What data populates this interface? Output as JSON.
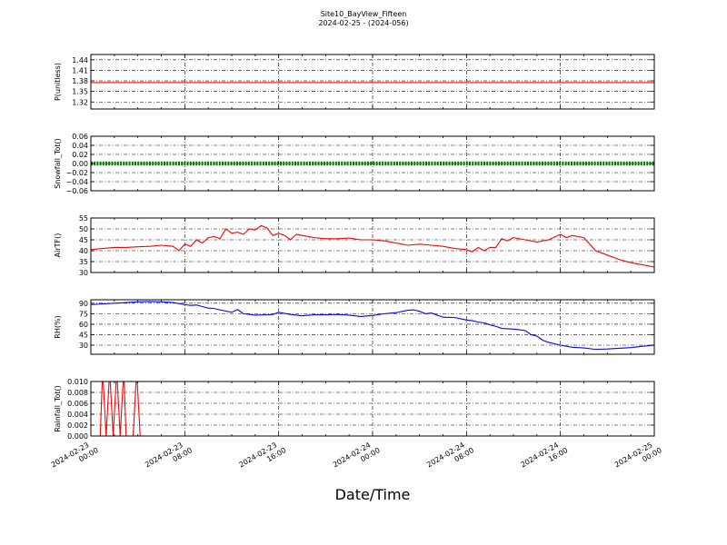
{
  "figure": {
    "title": "Site10_BayView_Fifteen",
    "subtitle": "2024-02-25 - (2024-056)",
    "xlabel": "Date/Time",
    "x_tick_labels": [
      [
        "2024-02-23",
        "00:00"
      ],
      [
        "2024-02-23",
        "08:00"
      ],
      [
        "2024-02-23",
        "16:00"
      ],
      [
        "2024-02-24",
        "00:00"
      ],
      [
        "2024-02-24",
        "08:00"
      ],
      [
        "2024-02-24",
        "16:00"
      ],
      [
        "2024-02-25",
        "00:00"
      ]
    ]
  },
  "chart_data": [
    {
      "type": "line",
      "ylabel": "P(unitless)",
      "color": "#ff0000",
      "xlim": [
        0,
        48
      ],
      "ylim": [
        1.3,
        1.455
      ],
      "yticks": [
        "1.44",
        "1.41",
        "1.38",
        "1.35",
        "1.32"
      ],
      "ytick_values": [
        1.44,
        1.41,
        1.38,
        1.35,
        1.32
      ],
      "grid": true,
      "series": [
        {
          "x": [
            0,
            48
          ],
          "values": [
            1.375,
            1.375
          ]
        }
      ]
    },
    {
      "type": "line",
      "ylabel": "Snowfall_Tot()",
      "color": "#008000",
      "markers": true,
      "xlim": [
        0,
        48
      ],
      "ylim": [
        -0.06,
        0.06
      ],
      "yticks": [
        "0.06",
        "0.04",
        "0.02",
        "0.00",
        "−0.02",
        "−0.04",
        "−0.06"
      ],
      "ytick_values": [
        0.06,
        0.04,
        0.02,
        0.0,
        -0.02,
        -0.04,
        -0.06
      ],
      "grid": true,
      "series": [
        {
          "x": [
            0,
            48
          ],
          "values": [
            0,
            0
          ]
        }
      ]
    },
    {
      "type": "line",
      "ylabel": "AirTF()",
      "color": "#ff0000",
      "xlim": [
        0,
        48
      ],
      "ylim": [
        30,
        55
      ],
      "yticks": [
        "55",
        "50",
        "45",
        "40",
        "35",
        "30"
      ],
      "ytick_values": [
        55,
        50,
        45,
        40,
        35,
        30
      ],
      "grid": true,
      "series": [
        {
          "x": [
            0,
            1,
            2,
            3,
            4,
            5,
            6,
            7,
            7.5,
            8,
            8.5,
            9,
            9.5,
            10,
            10.5,
            11,
            11.5,
            12,
            12.5,
            13,
            13.5,
            14,
            14.5,
            15,
            15.5,
            16,
            16.5,
            17,
            17.5,
            18,
            19,
            20,
            21,
            22,
            23,
            24,
            25,
            26,
            27,
            28,
            29,
            30,
            31,
            32,
            32.5,
            33,
            33.5,
            34,
            34.5,
            35,
            35.5,
            36,
            37,
            38,
            39,
            40,
            40.5,
            41,
            42,
            43,
            44,
            45,
            46,
            47,
            48
          ],
          "values": [
            40.5,
            41,
            41.5,
            41.5,
            41.8,
            42,
            42.5,
            42,
            40,
            43,
            42,
            45,
            43.5,
            46,
            46.5,
            45.5,
            50,
            48,
            48.5,
            47.5,
            50,
            49.5,
            51.5,
            50.5,
            47,
            48,
            47,
            45,
            47.5,
            47,
            46,
            45.5,
            45.5,
            45.8,
            45,
            45,
            44.5,
            43.5,
            42.5,
            43,
            42.5,
            42,
            41,
            40.5,
            39.5,
            41.5,
            40,
            41.5,
            41.5,
            45.5,
            44.5,
            46,
            45,
            44,
            45,
            47.5,
            46,
            47,
            46,
            40,
            38,
            36,
            34.5,
            33.5,
            32.5
          ]
        }
      ]
    },
    {
      "type": "line",
      "ylabel": "RH(%)",
      "color": "#0000ff",
      "xlim": [
        0,
        48
      ],
      "ylim": [
        17,
        95
      ],
      "yticks": [
        "90",
        "75",
        "60",
        "45",
        "30"
      ],
      "ytick_values": [
        90,
        75,
        60,
        45,
        30
      ],
      "grid": true,
      "series": [
        {
          "x": [
            0,
            2,
            4,
            5,
            6,
            7,
            8,
            8.5,
            9,
            10,
            10.5,
            11,
            12,
            12.5,
            13,
            14,
            15,
            15.5,
            16,
            17,
            18,
            19,
            20,
            21,
            22,
            23,
            24,
            25,
            26,
            27,
            27.5,
            28,
            28.5,
            29,
            30,
            31,
            32,
            32.5,
            33,
            33.5,
            34,
            34.5,
            35,
            36,
            36.5,
            37,
            37.5,
            38,
            38.5,
            39,
            40,
            41,
            42,
            43,
            44,
            45,
            46,
            47,
            48
          ],
          "values": [
            88,
            90,
            92,
            92.5,
            92,
            91,
            88,
            87,
            87.5,
            83,
            82.5,
            80.5,
            77,
            81,
            75,
            73,
            73.5,
            74,
            77,
            74,
            72,
            73.5,
            73.5,
            74,
            73,
            71,
            72.5,
            75,
            76.5,
            80,
            80.5,
            78.5,
            75,
            76,
            70,
            69.5,
            66,
            65,
            63,
            62,
            59,
            57,
            54,
            53,
            52,
            51,
            45,
            43,
            37,
            34,
            30,
            27,
            26,
            24,
            24.5,
            25.5,
            26.5,
            28.5,
            30
          ]
        }
      ]
    },
    {
      "type": "line",
      "ylabel": "Rainfall_Tot()",
      "color": "#ff0000",
      "xlim": [
        0,
        48
      ],
      "ylim": [
        0,
        0.01
      ],
      "yticks": [
        "0.010",
        "0.008",
        "0.006",
        "0.004",
        "0.002",
        "0.000"
      ],
      "ytick_values": [
        0.01,
        0.008,
        0.006,
        0.004,
        0.002,
        0.0
      ],
      "grid": true,
      "series": [
        {
          "x": [
            0,
            0.8,
            1.0,
            1.3,
            1.6,
            1.9,
            2.2,
            2.5,
            2.8,
            3.0,
            3.3,
            3.6,
            3.9,
            4.2,
            4.5,
            48
          ],
          "values": [
            0,
            0,
            0.012,
            0,
            0.012,
            0,
            0.012,
            0,
            0.012,
            0,
            0,
            0,
            0.012,
            0,
            0,
            0
          ]
        }
      ]
    }
  ]
}
